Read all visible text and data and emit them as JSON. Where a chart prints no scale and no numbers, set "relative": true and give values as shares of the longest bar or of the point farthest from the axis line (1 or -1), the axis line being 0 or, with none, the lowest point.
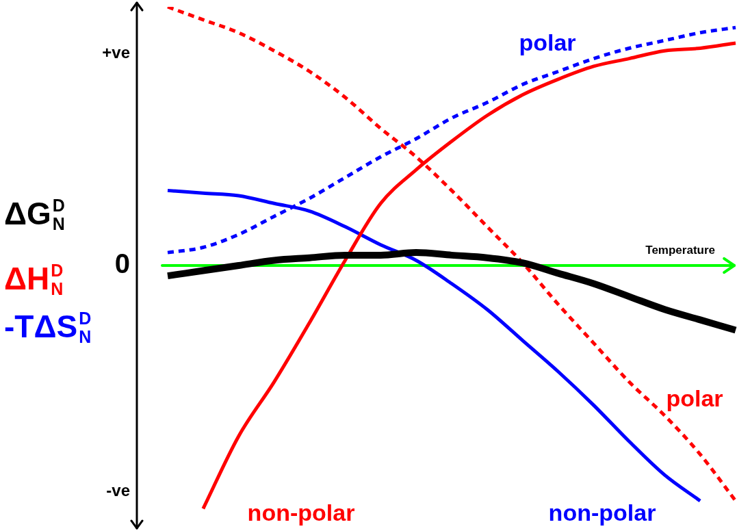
{
  "chart_data": {
    "type": "line",
    "relative": true,
    "xlabel": "Temperature",
    "legend": false,
    "categories": [
      null,
      null,
      null,
      null,
      null,
      null,
      null,
      null,
      null,
      null,
      null,
      null,
      null,
      null,
      null,
      null,
      null
    ],
    "series": [
      {
        "color": "#000000",
        "line_style": "solid",
        "values": [
          -0.04,
          -0.02,
          0.0,
          0.02,
          0.03,
          0.04,
          0.04,
          0.05,
          0.04,
          0.03,
          0.01,
          -0.03,
          -0.07,
          -0.12,
          -0.17,
          -0.21,
          -0.25
        ]
      },
      {
        "name": "polar",
        "color": "#ff0000",
        "line_style": "dotted",
        "values": [
          1.0,
          0.95,
          0.9,
          0.83,
          0.75,
          0.65,
          0.53,
          0.42,
          0.29,
          0.15,
          0.01,
          -0.15,
          -0.3,
          -0.45,
          -0.58,
          -0.73,
          -0.91
        ]
      },
      {
        "name": "non-polar",
        "color": "#ff0000",
        "line_style": "solid",
        "values": [
          null,
          -0.94,
          -0.66,
          -0.45,
          -0.22,
          0.02,
          0.24,
          0.37,
          0.48,
          0.58,
          0.66,
          0.72,
          0.77,
          0.8,
          0.83,
          0.84,
          0.86
        ]
      },
      {
        "name": "polar",
        "color": "#0000ff",
        "line_style": "dotted",
        "values": [
          0.05,
          0.07,
          0.12,
          0.19,
          0.26,
          0.34,
          0.42,
          0.49,
          0.57,
          0.63,
          0.7,
          0.75,
          0.8,
          0.84,
          0.87,
          0.9,
          0.92
        ]
      },
      {
        "name": "non-polar",
        "color": "#0000ff",
        "line_style": "solid",
        "values": [
          0.29,
          0.28,
          0.27,
          0.24,
          0.21,
          0.15,
          0.08,
          0.02,
          -0.07,
          -0.17,
          -0.29,
          -0.41,
          -0.54,
          -0.68,
          -0.81,
          -0.91,
          null
        ]
      }
    ],
    "ref_lines": [
      {
        "axis": "y",
        "value": 0,
        "color": "#00ff00"
      }
    ],
    "annotations": [
      "ΔG$^{D}$$_{N}$",
      "ΔH$^{D}$$_{N}$",
      "-TΔS$^{D}$$_{N}$",
      "+ve",
      "0",
      "-ve"
    ]
  }
}
